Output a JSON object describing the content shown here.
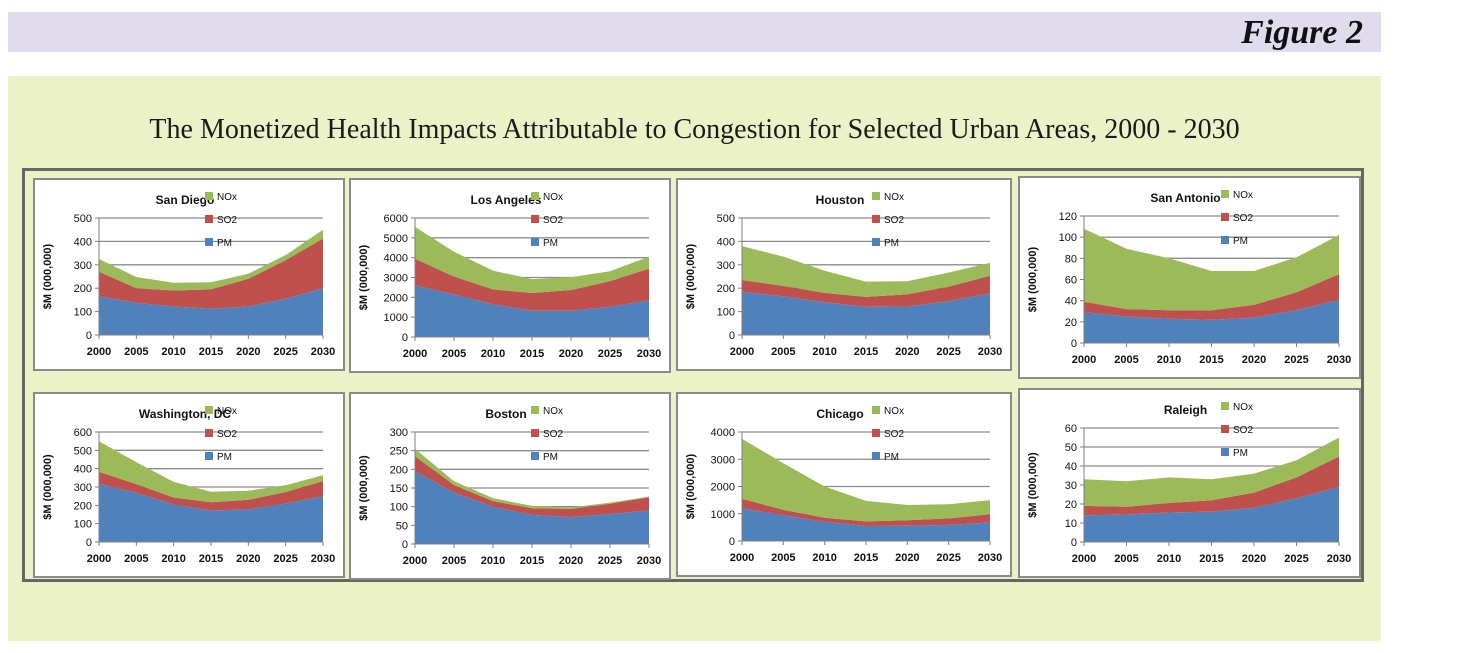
{
  "figure_label": "Figure 2",
  "title": "The Monetized Health Impacts Attributable to Congestion for Selected Urban Areas, 2000 - 2030",
  "colors": {
    "PM": "#4f81bd",
    "SO2": "#c0504d",
    "NOx": "#9bbb59"
  },
  "chart_data": [
    {
      "type": "area",
      "title": "San Diego",
      "ylabel": "$M (000,000)",
      "x": [
        "2000",
        "2005",
        "2010",
        "2015",
        "2020",
        "2025",
        "2030"
      ],
      "ylim": [
        0,
        500
      ],
      "yticks": [
        0,
        100,
        200,
        300,
        400,
        500
      ],
      "series": [
        {
          "name": "PM",
          "values": [
            165,
            138,
            122,
            112,
            122,
            155,
            200
          ]
        },
        {
          "name": "SO2",
          "values": [
            105,
            62,
            68,
            83,
            118,
            165,
            212
          ]
        },
        {
          "name": "NOx",
          "values": [
            55,
            48,
            33,
            30,
            22,
            22,
            38
          ]
        }
      ]
    },
    {
      "type": "area",
      "title": "Los Angeles",
      "ylabel": "$M (000,000)",
      "x": [
        "2000",
        "2005",
        "2010",
        "2015",
        "2020",
        "2025",
        "2030"
      ],
      "ylim": [
        0,
        6000
      ],
      "yticks": [
        0,
        1000,
        2000,
        3000,
        4000,
        5000,
        6000
      ],
      "series": [
        {
          "name": "PM",
          "values": [
            2600,
            2150,
            1650,
            1320,
            1320,
            1520,
            1850
          ]
        },
        {
          "name": "SO2",
          "values": [
            1350,
            900,
            750,
            900,
            1050,
            1300,
            1600
          ]
        },
        {
          "name": "NOx",
          "values": [
            1600,
            1250,
            950,
            700,
            650,
            500,
            600
          ]
        }
      ]
    },
    {
      "type": "area",
      "title": "Houston",
      "ylabel": "$M (000,000)",
      "x": [
        "2000",
        "2005",
        "2010",
        "2015",
        "2020",
        "2025",
        "2030"
      ],
      "ylim": [
        0,
        500
      ],
      "yticks": [
        0,
        100,
        200,
        300,
        400,
        500
      ],
      "series": [
        {
          "name": "PM",
          "values": [
            185,
            165,
            140,
            120,
            122,
            145,
            178
          ]
        },
        {
          "name": "SO2",
          "values": [
            50,
            45,
            40,
            43,
            52,
            62,
            75
          ]
        },
        {
          "name": "NOx",
          "values": [
            145,
            125,
            95,
            65,
            56,
            60,
            55
          ]
        }
      ]
    },
    {
      "type": "area",
      "title": "San Antonio",
      "ylabel": "$M (000,000)",
      "x": [
        "2000",
        "2005",
        "2010",
        "2015",
        "2020",
        "2025",
        "2030"
      ],
      "ylim": [
        0,
        120
      ],
      "yticks": [
        0,
        20,
        40,
        60,
        80,
        100,
        120
      ],
      "series": [
        {
          "name": "PM",
          "values": [
            29,
            25,
            23,
            22,
            24,
            31,
            41
          ]
        },
        {
          "name": "SO2",
          "values": [
            10,
            7,
            8,
            9,
            12,
            17,
            24
          ]
        },
        {
          "name": "NOx",
          "values": [
            69,
            57,
            49,
            37,
            32,
            33,
            37
          ]
        }
      ]
    },
    {
      "type": "area",
      "title": "Washington, DC",
      "ylabel": "$M (000,000)",
      "x": [
        "2000",
        "2005",
        "2010",
        "2015",
        "2020",
        "2025",
        "2030"
      ],
      "ylim": [
        0,
        600
      ],
      "yticks": [
        0,
        100,
        200,
        300,
        400,
        500,
        600
      ],
      "series": [
        {
          "name": "PM",
          "values": [
            318,
            268,
            205,
            172,
            178,
            210,
            250
          ]
        },
        {
          "name": "SO2",
          "values": [
            65,
            48,
            38,
            45,
            52,
            63,
            82
          ]
        },
        {
          "name": "NOx",
          "values": [
            167,
            120,
            85,
            57,
            50,
            37,
            33
          ]
        }
      ]
    },
    {
      "type": "area",
      "title": "Boston",
      "ylabel": "$M (000,000)",
      "x": [
        "2000",
        "2005",
        "2010",
        "2015",
        "2020",
        "2025",
        "2030"
      ],
      "ylim": [
        0,
        300
      ],
      "yticks": [
        0,
        50,
        100,
        150,
        200,
        250,
        300
      ],
      "series": [
        {
          "name": "PM",
          "values": [
            195,
            138,
            100,
            78,
            72,
            80,
            90
          ]
        },
        {
          "name": "SO2",
          "values": [
            40,
            20,
            15,
            18,
            22,
            28,
            35
          ]
        },
        {
          "name": "NOx",
          "values": [
            20,
            10,
            8,
            6,
            4,
            3,
            2
          ]
        }
      ]
    },
    {
      "type": "area",
      "title": "Chicago",
      "ylabel": "$M (000,000)",
      "x": [
        "2000",
        "2005",
        "2010",
        "2015",
        "2020",
        "2025",
        "2030"
      ],
      "ylim": [
        0,
        4000
      ],
      "yticks": [
        0,
        1000,
        2000,
        3000,
        4000
      ],
      "series": [
        {
          "name": "PM",
          "values": [
            1200,
            950,
            700,
            550,
            560,
            590,
            680
          ]
        },
        {
          "name": "SO2",
          "values": [
            350,
            200,
            150,
            170,
            200,
            240,
            300
          ]
        },
        {
          "name": "NOx",
          "values": [
            2200,
            1700,
            1150,
            750,
            560,
            520,
            520
          ]
        }
      ]
    },
    {
      "type": "area",
      "title": "Raleigh",
      "ylabel": "$M (000,000)",
      "x": [
        "2000",
        "2005",
        "2010",
        "2015",
        "2020",
        "2025",
        "2030"
      ],
      "ylim": [
        0,
        60
      ],
      "yticks": [
        0,
        10,
        20,
        30,
        40,
        50,
        60
      ],
      "series": [
        {
          "name": "PM",
          "values": [
            14,
            14.5,
            15.5,
            16,
            18,
            23,
            29
          ]
        },
        {
          "name": "SO2",
          "values": [
            5,
            4,
            5,
            6,
            8,
            11,
            16
          ]
        },
        {
          "name": "NOx",
          "values": [
            14,
            13.5,
            13.5,
            11,
            10,
            9,
            10
          ]
        }
      ]
    }
  ]
}
